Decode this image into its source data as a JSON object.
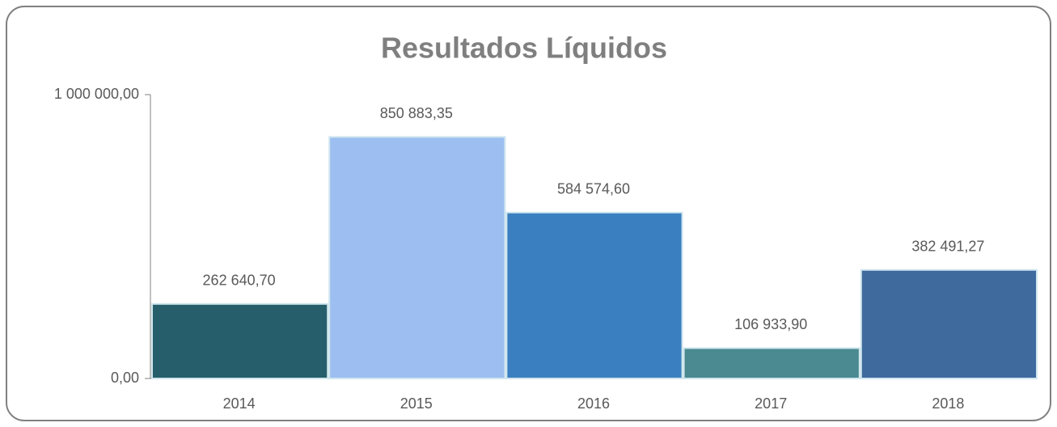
{
  "chart_data": {
    "type": "bar",
    "title": "Resultados Líquidos",
    "categories": [
      "2014",
      "2015",
      "2016",
      "2017",
      "2018"
    ],
    "values": [
      262640.7,
      850883.35,
      584574.6,
      106933.9,
      382491.27
    ],
    "value_labels": [
      "262 640,70",
      "850 883,35",
      "584 574,60",
      "106 933,90",
      "382 491,27"
    ],
    "colors": [
      "#265f6b",
      "#9dbef0",
      "#3a80c0",
      "#4a8a90",
      "#3f6a9e"
    ],
    "ylim": [
      0,
      1000000
    ],
    "yticks": [
      {
        "value": 0,
        "label": "0,00"
      },
      {
        "value": 1000000,
        "label": "1 000 000,00"
      }
    ],
    "grid": false
  }
}
